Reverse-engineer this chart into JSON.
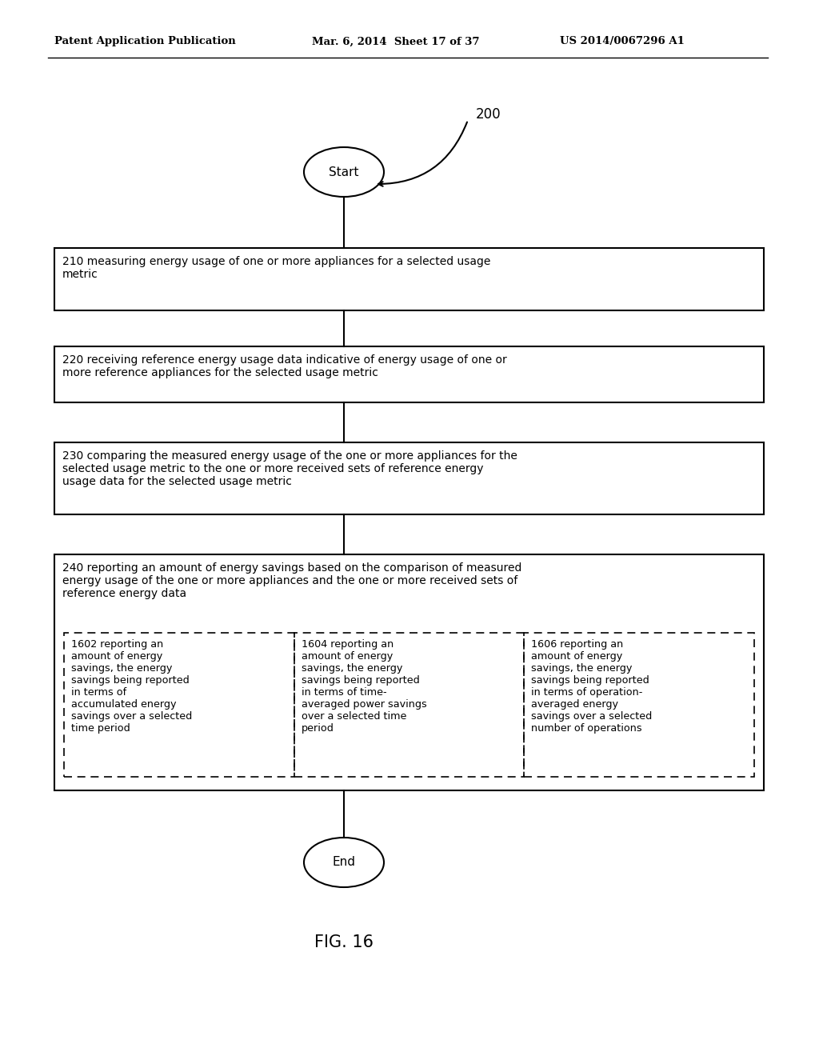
{
  "bg_color": "#ffffff",
  "header_left": "Patent Application Publication",
  "header_mid": "Mar. 6, 2014  Sheet 17 of 37",
  "header_right": "US 2014/0067296 A1",
  "figure_label": "FIG. 16",
  "diagram_label": "200",
  "start_label": "Start",
  "end_label": "End",
  "boxes": [
    {
      "id": "210",
      "text": "210 measuring energy usage of one or more appliances for a selected usage\nmetric"
    },
    {
      "id": "220",
      "text": "220 receiving reference energy usage data indicative of energy usage of one or\nmore reference appliances for the selected usage metric"
    },
    {
      "id": "230",
      "text": "230 comparing the measured energy usage of the one or more appliances for the\nselected usage metric to the one or more received sets of reference energy\nusage data for the selected usage metric"
    },
    {
      "id": "240",
      "text": "240 reporting an amount of energy savings based on the comparison of measured\nenergy usage of the one or more appliances and the one or more received sets of\nreference energy data"
    }
  ],
  "sub_boxes": [
    {
      "id": "1602",
      "text": "1602 reporting an\namount of energy\nsavings, the energy\nsavings being reported\nin terms of\naccumulated energy\nsavings over a selected\ntime period"
    },
    {
      "id": "1604",
      "text": "1604 reporting an\namount of energy\nsavings, the energy\nsavings being reported\nin terms of time-\naveraged power savings\nover a selected time\nperiod"
    },
    {
      "id": "1606",
      "text": "1606 reporting an\namount of energy\nsavings, the energy\nsavings being reported\nin terms of operation-\naveraged energy\nsavings over a selected\nnumber of operations"
    }
  ]
}
